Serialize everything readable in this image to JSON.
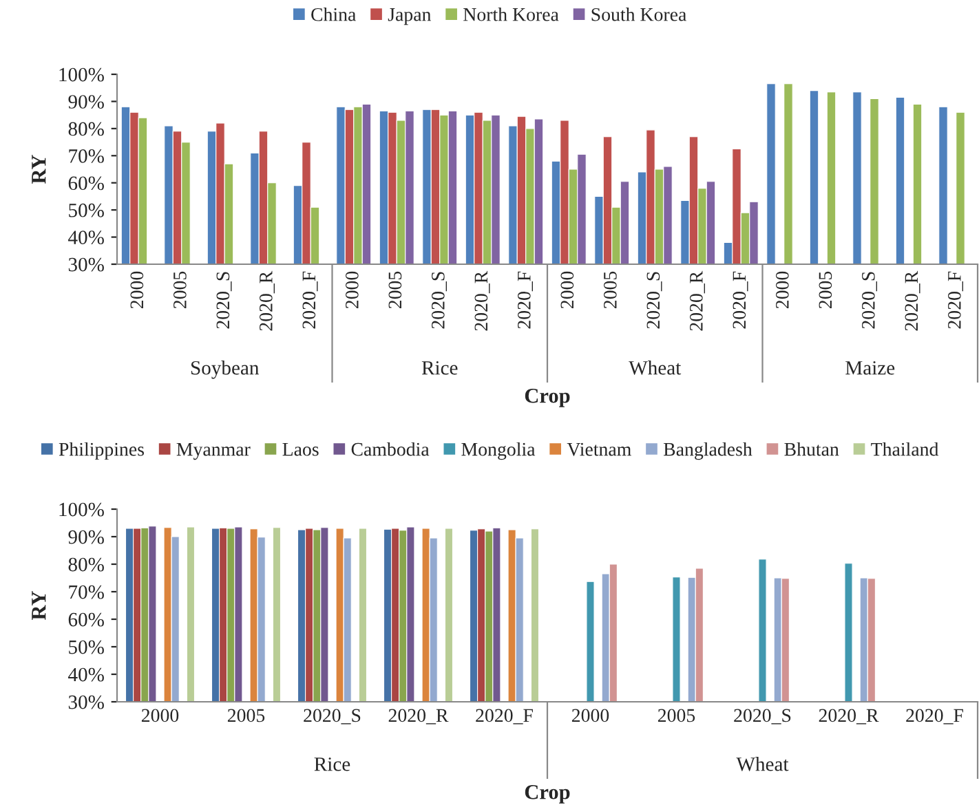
{
  "chart_data": [
    {
      "type": "bar",
      "xlabel": "Crop",
      "ylabel": "RY",
      "legend": "top",
      "grid": false,
      "categories": [
        "2000",
        "2005",
        "2020_S",
        "2020_R",
        "2020_F",
        "2000",
        "2005",
        "2020_S",
        "2020_R",
        "2020_F",
        "2000",
        "2005",
        "2020_S",
        "2020_R",
        "2020_F",
        "2000",
        "2005",
        "2020_S",
        "2020_R",
        "2020_F"
      ],
      "annotations": [
        "Soybean",
        "Rice",
        "Wheat",
        "Maize"
      ],
      "ylim": [
        30,
        100
      ],
      "yticks": [
        {
          "value": 30,
          "label": "30%"
        },
        {
          "value": 40,
          "label": "40%"
        },
        {
          "value": 50,
          "label": "50%"
        },
        {
          "value": 60,
          "label": "60%"
        },
        {
          "value": 70,
          "label": "70%"
        },
        {
          "value": 80,
          "label": "80%"
        },
        {
          "value": 90,
          "label": "90%"
        },
        {
          "value": 100,
          "label": "100%"
        }
      ],
      "series": [
        {
          "name": "China",
          "color": "#4f81bd",
          "values": [
            88,
            81,
            79,
            71,
            59,
            88,
            86.5,
            87,
            85,
            81,
            68,
            55,
            64,
            53.5,
            38,
            96.5,
            94,
            93.5,
            91.5,
            88
          ]
        },
        {
          "name": "Japan",
          "color": "#c0504d",
          "values": [
            86,
            79,
            82,
            79,
            75,
            87,
            86,
            87,
            86,
            84.5,
            83,
            77,
            79.5,
            77,
            72.5,
            null,
            null,
            null,
            null,
            null
          ]
        },
        {
          "name": "North Korea",
          "color": "#9bbb59",
          "values": [
            84,
            75,
            67,
            60,
            51,
            88,
            83,
            85,
            83,
            80,
            65,
            51,
            65,
            58,
            49,
            96.5,
            93.5,
            91,
            89,
            86
          ]
        },
        {
          "name": "South Korea",
          "color": "#8064a2",
          "values": [
            null,
            null,
            null,
            null,
            null,
            89,
            86.5,
            86.5,
            85,
            83.5,
            70.5,
            60.5,
            66,
            60.5,
            53,
            null,
            null,
            null,
            null,
            null
          ]
        }
      ]
    },
    {
      "type": "bar",
      "xlabel": "Crop",
      "ylabel": "RY",
      "legend": "top",
      "grid": false,
      "categories": [
        "2000",
        "2005",
        "2020_S",
        "2020_R",
        "2020_F",
        "2000",
        "2005",
        "2020_S",
        "2020_R",
        "2020_F"
      ],
      "annotations": [
        "Rice",
        "Wheat"
      ],
      "ylim": [
        30,
        100
      ],
      "yticks": [
        {
          "value": 30,
          "label": "30%"
        },
        {
          "value": 40,
          "label": "40%"
        },
        {
          "value": 50,
          "label": "50%"
        },
        {
          "value": 60,
          "label": "60%"
        },
        {
          "value": 70,
          "label": "70%"
        },
        {
          "value": 80,
          "label": "80%"
        },
        {
          "value": 90,
          "label": "90%"
        },
        {
          "value": 100,
          "label": "100%"
        }
      ],
      "series": [
        {
          "name": "Philippines",
          "color": "#4572a7",
          "values": [
            93,
            93,
            92.5,
            92.7,
            92.3,
            null,
            null,
            null,
            null,
            null
          ]
        },
        {
          "name": "Myanmar",
          "color": "#aa4643",
          "values": [
            93,
            93.2,
            93,
            93,
            92.8,
            null,
            null,
            null,
            null,
            null
          ]
        },
        {
          "name": "Laos",
          "color": "#89a54e",
          "values": [
            93.2,
            93,
            92.5,
            92.3,
            92,
            null,
            null,
            null,
            null,
            null
          ]
        },
        {
          "name": "Cambodia",
          "color": "#71588f",
          "values": [
            93.8,
            93.5,
            93.3,
            93.5,
            93.2,
            null,
            null,
            null,
            null,
            null
          ]
        },
        {
          "name": "Mongolia",
          "color": "#4198af",
          "values": [
            null,
            null,
            null,
            null,
            null,
            73.7,
            75.3,
            81.8,
            80.3,
            null
          ]
        },
        {
          "name": "Vietnam",
          "color": "#db843d",
          "values": [
            93.3,
            92.8,
            93,
            93,
            92.5,
            null,
            null,
            null,
            null,
            null
          ]
        },
        {
          "name": "Bangladesh",
          "color": "#93a9cf",
          "values": [
            90,
            89.8,
            89.5,
            89.5,
            89.5,
            76.5,
            75.2,
            75,
            75,
            null
          ]
        },
        {
          "name": "Bhutan",
          "color": "#d19392",
          "values": [
            null,
            null,
            null,
            null,
            null,
            80,
            78.5,
            74.8,
            74.8,
            null
          ]
        },
        {
          "name": "Thailand",
          "color": "#b9cd96",
          "values": [
            93.5,
            93.3,
            93,
            93,
            92.8,
            null,
            null,
            null,
            null,
            null
          ]
        }
      ]
    }
  ]
}
